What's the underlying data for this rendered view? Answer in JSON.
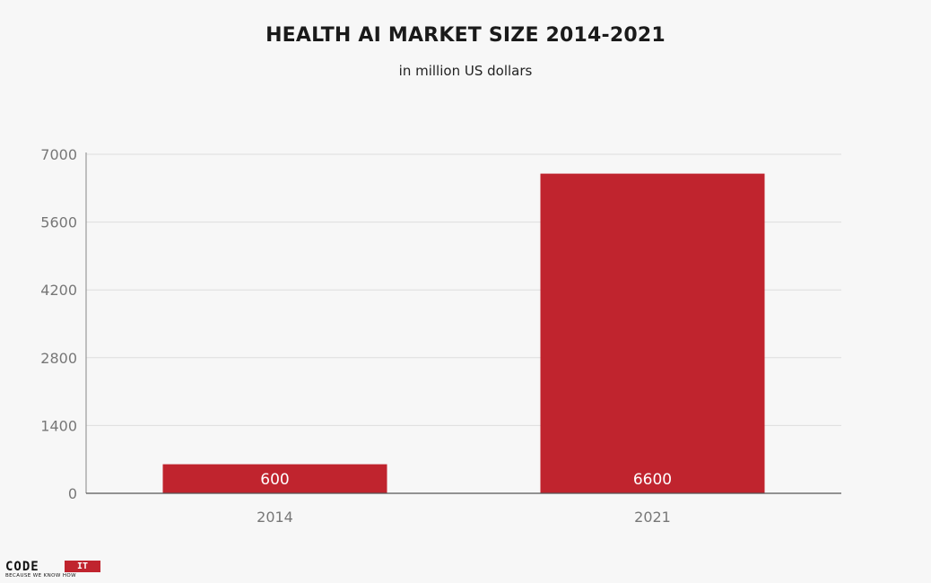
{
  "chart_data": {
    "type": "bar",
    "title": "HEALTH AI MARKET SIZE 2014-2021",
    "subtitle": "in million US dollars",
    "categories": [
      "2014",
      "2021"
    ],
    "values": [
      600,
      6600
    ],
    "data_labels": [
      "600",
      "6600"
    ],
    "y_ticks": [
      "0",
      "1400",
      "2800",
      "4200",
      "5600",
      "7000"
    ],
    "ylim": [
      0,
      7000
    ],
    "grid": true,
    "legend": "none",
    "bar_color": "#c0242e"
  },
  "brand": {
    "name": "CODE",
    "name_highlight": "IT",
    "tagline": "BECAUSE WE KNOW HOW",
    "accent_color": "#c0242e"
  }
}
